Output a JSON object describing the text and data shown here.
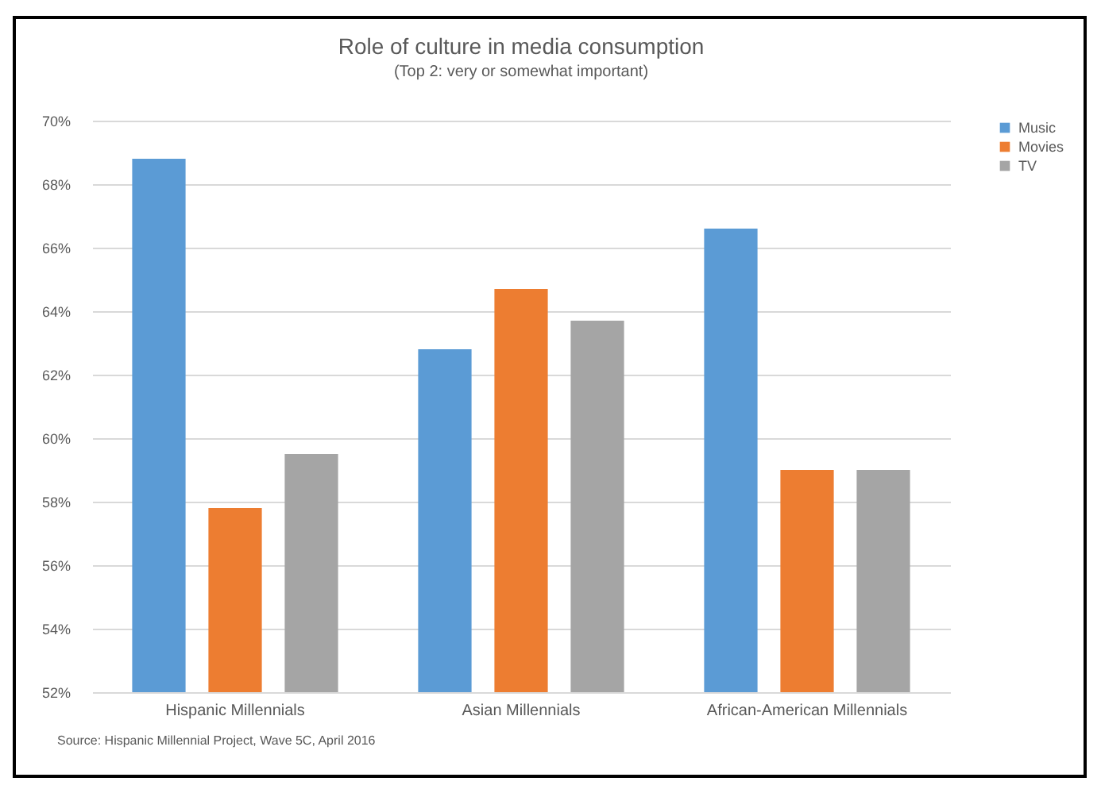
{
  "chart_data": {
    "type": "bar",
    "title": "Role of culture in media consumption",
    "subtitle": "(Top 2: very or somewhat important)",
    "categories": [
      "Hispanic Millennials",
      "Asian Millennials",
      "African-American Millennials"
    ],
    "series": [
      {
        "name": "Music",
        "color": "#5b9bd5",
        "values": [
          68.8,
          62.8,
          66.6
        ]
      },
      {
        "name": "Movies",
        "color": "#ed7d31",
        "values": [
          57.8,
          64.7,
          59.0
        ]
      },
      {
        "name": "TV",
        "color": "#a5a5a5",
        "values": [
          59.5,
          63.7,
          59.0
        ]
      }
    ],
    "ylim": [
      52,
      70
    ],
    "yticks": [
      {
        "value": 52,
        "label": "52%"
      },
      {
        "value": 54,
        "label": "54%"
      },
      {
        "value": 56,
        "label": "56%"
      },
      {
        "value": 58,
        "label": "58%"
      },
      {
        "value": 60,
        "label": "60%"
      },
      {
        "value": 62,
        "label": "62%"
      },
      {
        "value": 64,
        "label": "64%"
      },
      {
        "value": 66,
        "label": "66%"
      },
      {
        "value": 68,
        "label": "68%"
      },
      {
        "value": 70,
        "label": "70%"
      }
    ],
    "grid": "y",
    "legend": "right",
    "annotations": [
      "Source: Hispanic Millennial Project, Wave 5C, April 2016"
    ]
  }
}
